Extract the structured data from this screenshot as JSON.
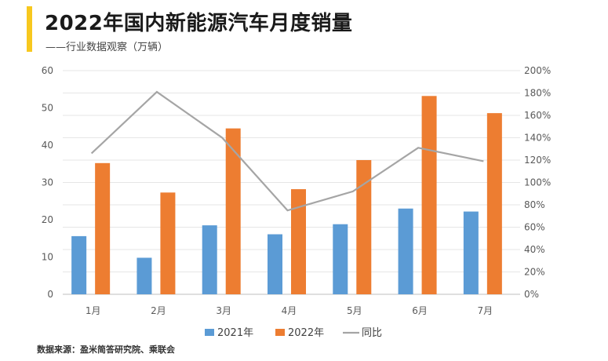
{
  "header": {
    "title": "2022年国内新能源汽车月度销量",
    "subtitle": "——行业数据观察（万辆）"
  },
  "footer": {
    "source": "数据来源：盈米简答研究院、乘联会"
  },
  "colors": {
    "accent": "#f7c81e",
    "series_2021": "#5b9bd5",
    "series_2022": "#ed7d31",
    "series_yoy": "#a5a5a5"
  },
  "chart_data": {
    "type": "bar",
    "title": "2022年国内新能源汽车月度销量",
    "categories": [
      "1月",
      "2月",
      "3月",
      "4月",
      "5月",
      "6月",
      "7月"
    ],
    "series": [
      {
        "name": "2021年",
        "type": "bar",
        "axis": "left",
        "values": [
          15.6,
          9.8,
          18.5,
          16.1,
          18.8,
          23.0,
          22.2
        ]
      },
      {
        "name": "2022年",
        "type": "bar",
        "axis": "left",
        "values": [
          35.2,
          27.3,
          44.5,
          28.2,
          36.0,
          53.2,
          48.6
        ]
      },
      {
        "name": "同比",
        "type": "line",
        "axis": "right",
        "values": [
          1.26,
          1.81,
          1.4,
          0.75,
          0.92,
          1.31,
          1.19
        ]
      }
    ],
    "y_left": {
      "min": 0,
      "max": 60,
      "ticks": [
        "0",
        "10",
        "20",
        "30",
        "40",
        "50",
        "60"
      ]
    },
    "y_right": {
      "min": 0,
      "max": 2.0,
      "ticks": [
        "0%",
        "20%",
        "40%",
        "60%",
        "80%",
        "100%",
        "120%",
        "140%",
        "160%",
        "180%",
        "200%"
      ]
    },
    "grid": true,
    "legend_position": "bottom"
  }
}
